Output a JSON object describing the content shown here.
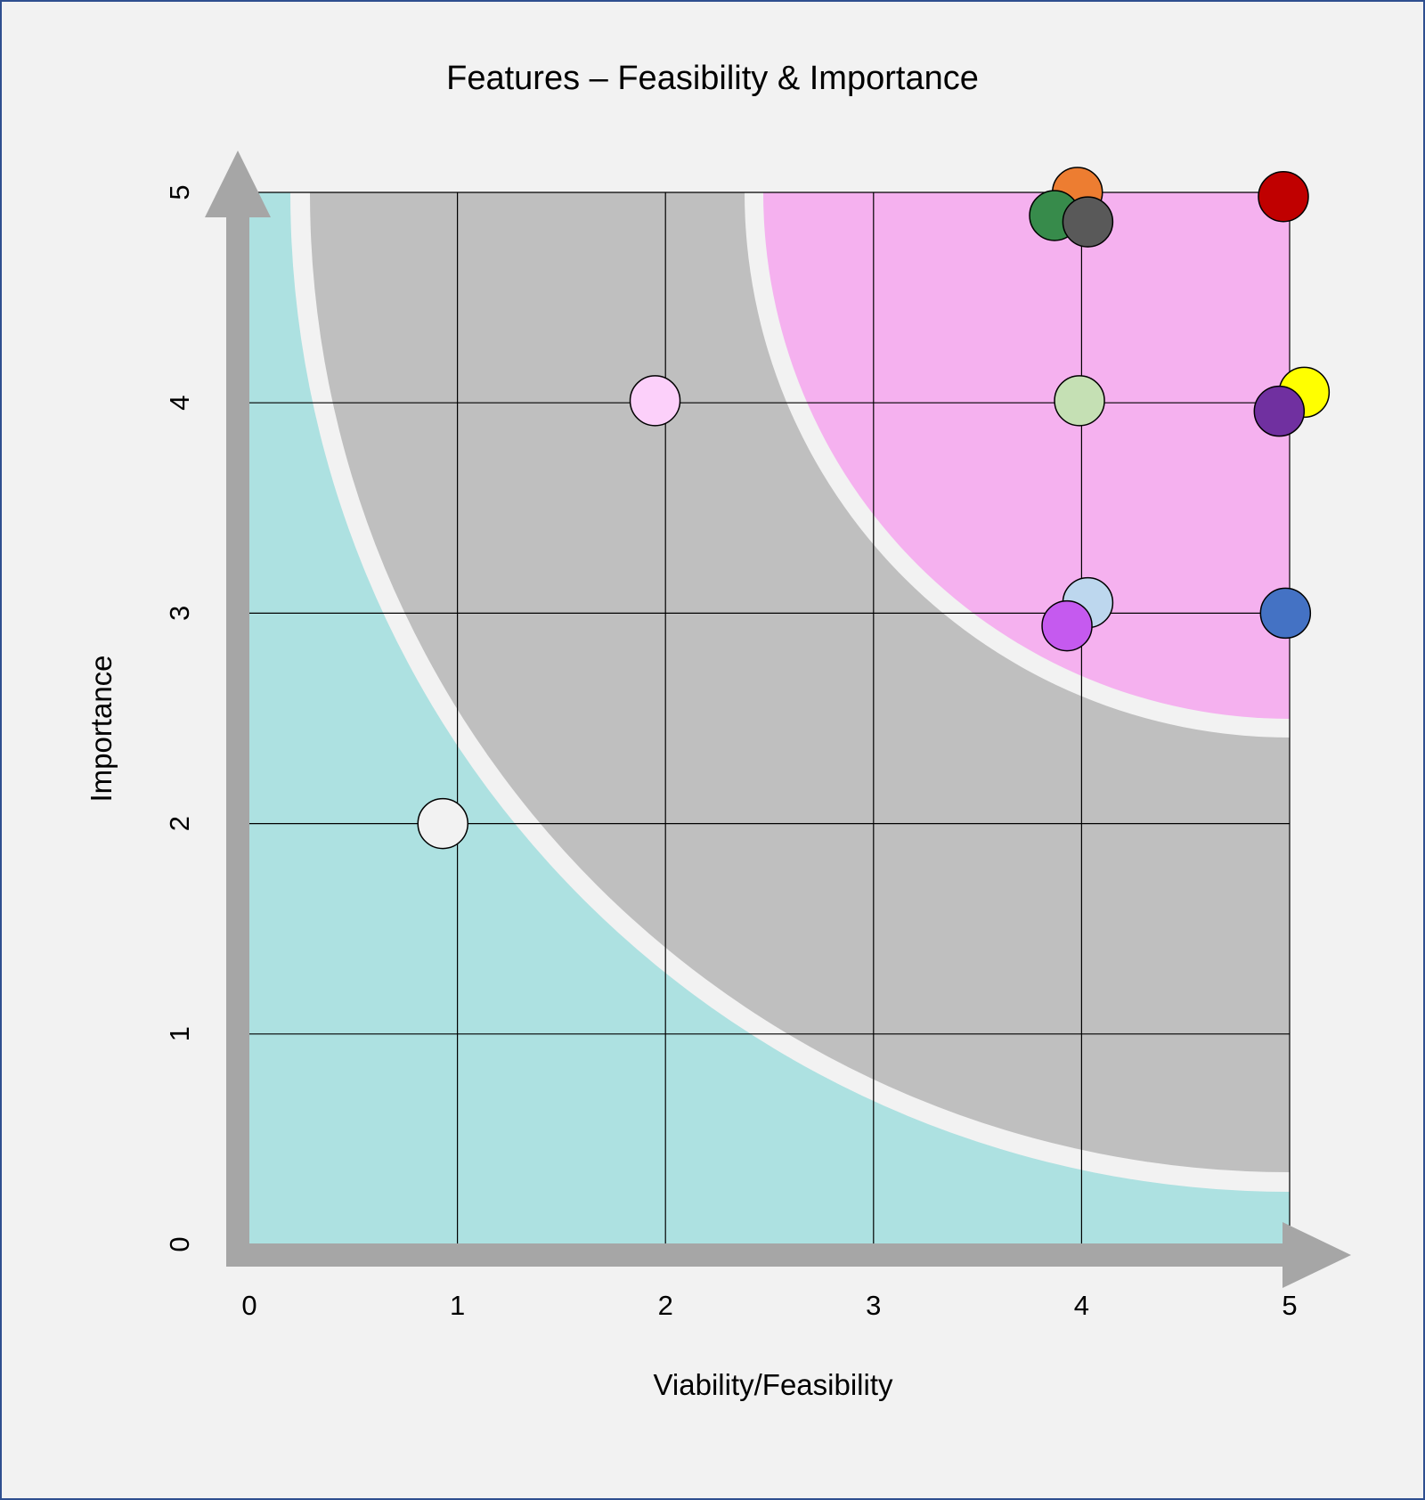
{
  "chart_data": {
    "type": "scatter",
    "title": "Features – Feasibility & Importance",
    "xlabel": "Viability/Feasibility",
    "ylabel": "Importance",
    "xlim": [
      0,
      5
    ],
    "ylim": [
      0,
      5
    ],
    "x_ticks": [
      "0",
      "1",
      "2",
      "3",
      "4",
      "5"
    ],
    "y_ticks": [
      "0",
      "1",
      "2",
      "3",
      "4",
      "5"
    ],
    "grid": true,
    "zones": [
      {
        "color": "#ade1e1"
      },
      {
        "color": "#bfbfbf"
      },
      {
        "color": "#f5b1ef"
      }
    ],
    "points": [
      {
        "x": 0.93,
        "y": 2.0,
        "color": "#f2f2f2"
      },
      {
        "x": 1.95,
        "y": 4.01,
        "color": "#fcd0fa"
      },
      {
        "x": 3.98,
        "y": 5.0,
        "color": "#ed7d31"
      },
      {
        "x": 3.87,
        "y": 4.89,
        "color": "#378b4b"
      },
      {
        "x": 4.03,
        "y": 4.86,
        "color": "#595959"
      },
      {
        "x": 4.97,
        "y": 4.98,
        "color": "#c00000"
      },
      {
        "x": 3.99,
        "y": 4.01,
        "color": "#c5e0b4"
      },
      {
        "x": 5.07,
        "y": 4.05,
        "color": "#ffff00"
      },
      {
        "x": 4.95,
        "y": 3.96,
        "color": "#7030a0"
      },
      {
        "x": 4.03,
        "y": 3.05,
        "color": "#bdd7ee"
      },
      {
        "x": 3.93,
        "y": 2.94,
        "color": "#c55aef"
      },
      {
        "x": 4.98,
        "y": 3.0,
        "color": "#4472c4"
      }
    ]
  },
  "colors": {
    "page_background": "#f2f2f2",
    "frame": "#2f4f8f",
    "axis_arrows": "#a6a6a6",
    "grid_lines": "#000000",
    "zone_separator": "#f2f2f2"
  }
}
